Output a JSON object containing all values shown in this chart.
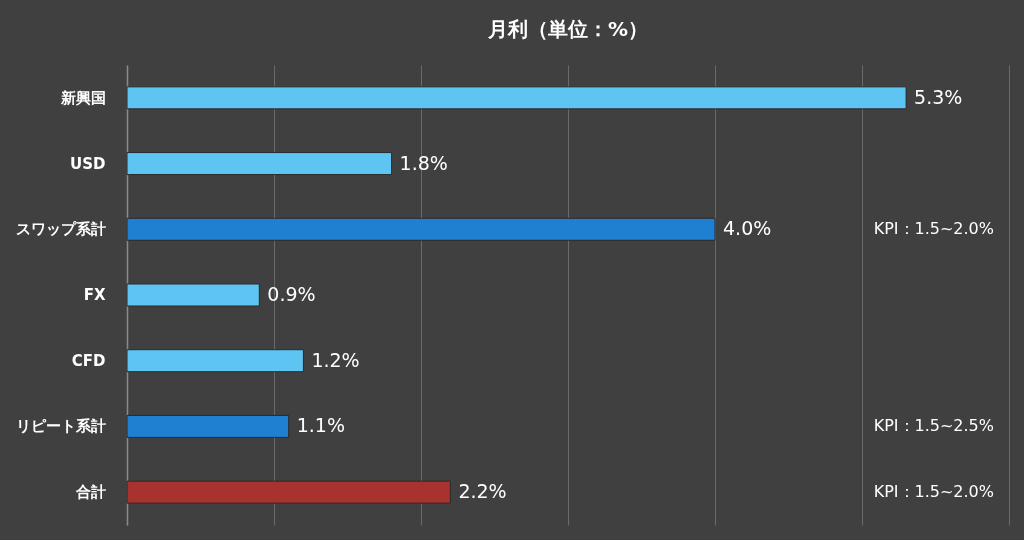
{
  "chart_data": {
    "type": "bar",
    "orientation": "horizontal",
    "title": "月利（単位：%）",
    "categories": [
      "新興国",
      "USD",
      "スワップ系計",
      "FX",
      "CFD",
      "リピート系計",
      "合計"
    ],
    "values": [
      5.3,
      1.8,
      4.0,
      0.9,
      1.2,
      1.1,
      2.2
    ],
    "colors": [
      "#5ec4f2",
      "#5ec4f2",
      "#1f7fd0",
      "#5ec4f2",
      "#5ec4f2",
      "#1f7fd0",
      "#a8322e"
    ],
    "value_labels": [
      "5.3%",
      "1.8%",
      "4.0%",
      "0.9%",
      "1.2%",
      "1.1%",
      "2.2%"
    ],
    "xlim": [
      0,
      6
    ],
    "xticks": [
      {
        "value": 0,
        "label": null
      },
      {
        "value": 1,
        "label": null
      },
      {
        "value": 2,
        "label": null
      },
      {
        "value": 3,
        "label": null
      },
      {
        "value": 4,
        "label": null
      },
      {
        "value": 5,
        "label": null
      },
      {
        "value": 6,
        "label": null
      }
    ],
    "tick_labels": "y",
    "grid": "x",
    "annotations": [
      "KPI：1.5~2.0%",
      "KPI：1.5~2.5%",
      "KPI：1.5~2.0%"
    ]
  }
}
